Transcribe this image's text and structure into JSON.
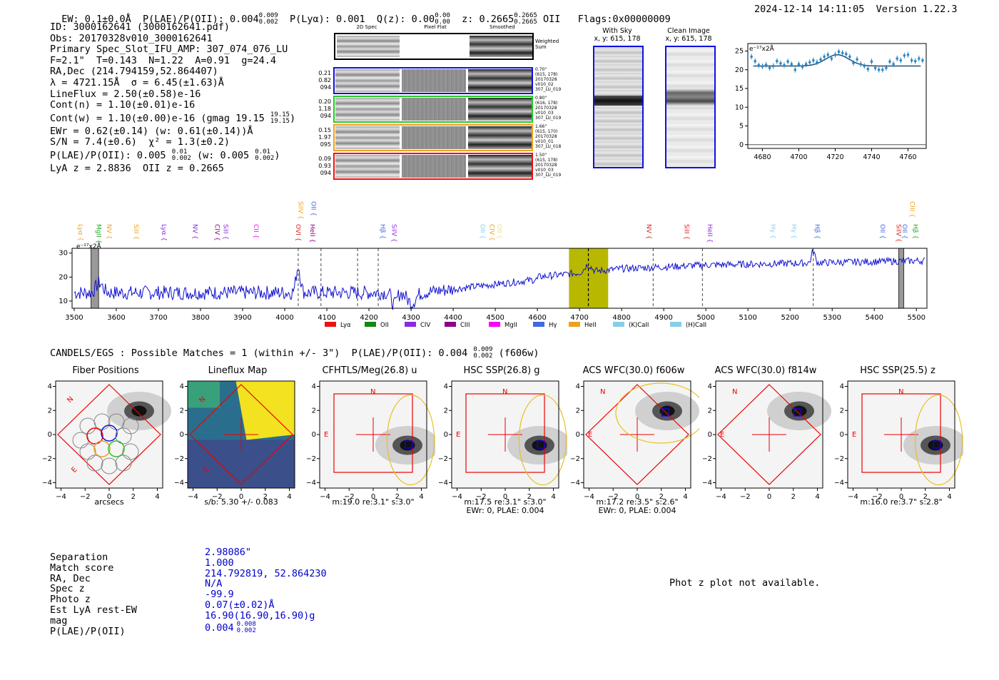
{
  "header": {
    "line": "EW: 0.1±0.0Å  P(LAE)/P(OII): 0.004",
    "plae_sup": "0.009",
    "plae_sub": "0.002",
    "plya": "P(Lyα): 0.001",
    "qz": "Q(z): 0.00",
    "qz_sup": "0.00",
    "qz_sub": "0.00",
    "z": "z: 0.2665",
    "z_sup": "0.2665",
    "z_sub": "0.2665",
    "z_line": "OII",
    "flags": "Flags:0x00000009",
    "datetime": "2024-12-14 14:11:05  Version 1.22.3"
  },
  "info": {
    "id": "ID: 3000162641 (3000162641.pdf)",
    "obs": "Obs: 20170328v010_3000162641",
    "slot": "Primary Spec_Slot_IFU_AMP: 307_074_076_LU",
    "params": "F=2.1\"  T=0.143  N=1.22  A=0.91  g=24.4",
    "radec": "RA,Dec (214.794159,52.864407)",
    "lambda": "λ = 4721.15Å  σ = 6.45(±1.63)Å",
    "lineflux": "LineFlux = 2.50(±0.58)e-16",
    "contn": "Cont(n) = 1.10(±0.01)e-16",
    "contw": "Cont(w) = 1.10(±0.00)e-16 (gmag 19.15",
    "contw_sup": "19.15",
    "contw_sub": "19.15",
    "contw_end": ")",
    "ewr": "EWr = 0.62(±0.14) (w: 0.61(±0.14))Å",
    "sn": "S/N = 7.4(±0.6)  χ² = 1.3(±0.2)",
    "plae": "P(LAE)/P(OII): 0.005",
    "plae_sup": "0.01",
    "plae_sub": "0.002",
    "plae_w": "(w: 0.005",
    "plae_w_sup": "0.01",
    "plae_w_sub": "0.002",
    "plae_w_end": ")",
    "lyaz": "LyA z = 2.8836  OII z = 0.2665"
  },
  "spec2d": {
    "col_2d": "2D Spec",
    "col_flat": "Pixel Flat",
    "col_smooth": "Smoothed",
    "weighted": "Weighted\nSum",
    "rows": [
      {
        "left": "0.21\n0.82\n094",
        "right": "0.70\"\n(615, 178)\n20170328\nv010_02\n307_LU_019",
        "color": "#1010e0"
      },
      {
        "left": "0.20\n1.18\n094",
        "right": "0.80\"\n(616, 178)\n20170328\nv010_03\n307_LU_019",
        "color": "#22cc22"
      },
      {
        "left": "0.15\n1.97\n095",
        "right": "1.66\"\n(615, 170)\n20170328\nv010_01\n307_LU_018",
        "color": "#f0a020"
      },
      {
        "left": "0.09\n0.93\n094",
        "right": "1.50\"\n(615, 178)\n20170328\nv010_03\n307_LU_019",
        "color": "#ee1111"
      }
    ]
  },
  "cutouts": {
    "sky_title": "With Sky",
    "sky_xy": "x, y: 615, 178",
    "clean_title": "Clean Image",
    "clean_xy": "x, y: 615, 178"
  },
  "zoom_chart": {
    "type": "scatter",
    "unit_label": "e⁻¹⁷x2Å",
    "x_ticks": [
      4680,
      4700,
      4720,
      4740,
      4760
    ],
    "y_ticks": [
      0,
      5,
      10,
      15,
      20,
      25
    ],
    "xlim": [
      4672,
      4770
    ],
    "ylim": [
      -1,
      27
    ],
    "x": [
      4674,
      4676,
      4678,
      4680,
      4682,
      4684,
      4686,
      4688,
      4690,
      4692,
      4694,
      4696,
      4698,
      4700,
      4702,
      4704,
      4706,
      4708,
      4710,
      4712,
      4714,
      4716,
      4718,
      4720,
      4722,
      4724,
      4726,
      4728,
      4730,
      4732,
      4734,
      4736,
      4738,
      4740,
      4742,
      4744,
      4746,
      4748,
      4750,
      4752,
      4754,
      4756,
      4758,
      4760,
      4762,
      4764,
      4766,
      4768
    ],
    "y": [
      23.5,
      22.3,
      21.2,
      20.9,
      21.3,
      20.5,
      21.0,
      22.3,
      21.7,
      21.2,
      22.2,
      21.5,
      20.0,
      21.5,
      20.8,
      21.5,
      22.0,
      22.5,
      22.0,
      22.7,
      23.5,
      24.0,
      23.0,
      24.0,
      24.8,
      24.5,
      24.2,
      23.5,
      21.8,
      22.8,
      21.5,
      21.0,
      20.2,
      22.2,
      20.5,
      20.0,
      20.0,
      20.5,
      22.2,
      21.5,
      23.0,
      22.5,
      23.8,
      24.0,
      22.5,
      22.3,
      23.0,
      22.5
    ],
    "fit_base": 21.0,
    "fit_peak": 24.0,
    "fit_center": 4721.15,
    "fit_sigma": 6.45
  },
  "full_spectrum": {
    "type": "line",
    "unit_label": "e⁻¹⁷x2Å",
    "xlim": [
      3495,
      5525
    ],
    "ylim": [
      7,
      32
    ],
    "x_ticks": [
      3500,
      3600,
      3700,
      3800,
      3900,
      4000,
      4100,
      4200,
      4300,
      4400,
      4500,
      4600,
      4700,
      4800,
      4900,
      5000,
      5100,
      5200,
      5300,
      5400,
      5500
    ],
    "y_ticks": [
      10,
      20,
      30
    ],
    "highlight_range": [
      4675,
      4768
    ],
    "masked_ranges": [
      [
        3540,
        3558
      ],
      [
        5458,
        5470
      ]
    ],
    "dashed_lines": [
      4032,
      4086,
      4173,
      4222,
      4721,
      4875,
      4992,
      5255
    ],
    "line_labels": [
      {
        "x": 3505,
        "label": "Lyα",
        "color": "#f0a020"
      },
      {
        "x": 3548,
        "label": "MgII",
        "color": "#22aa22"
      },
      {
        "x": 3573,
        "label": "NV",
        "color": "#f0a020"
      },
      {
        "x": 3637,
        "label": "SiII",
        "color": "#f0a020"
      },
      {
        "x": 3703,
        "label": "Lyα",
        "color": "#8a2be2"
      },
      {
        "x": 3777,
        "label": "NV",
        "color": "#8a2be2"
      },
      {
        "x": 3830,
        "label": "CIV",
        "color": "#8b008b"
      },
      {
        "x": 3850,
        "label": "SiII",
        "color": "#8a2be2"
      },
      {
        "x": 3922,
        "label": "CII",
        "color": "#ff00ff"
      },
      {
        "x": 4022,
        "label": "OVI",
        "color": "#dd2222"
      },
      {
        "x": 4056,
        "label": "HeII",
        "color": "#8b008b"
      },
      {
        "x": 4028,
        "label": "SiIV",
        "color": "#f0a020",
        "high": true
      },
      {
        "x": 4058,
        "label": "OII",
        "color": "#4169e1",
        "high": true
      },
      {
        "x": 4223,
        "label": "Hβ",
        "color": "#4169e1"
      },
      {
        "x": 4250,
        "label": "SiIV",
        "color": "#8a2be2"
      },
      {
        "x": 4460,
        "label": "OII",
        "color": "#87ceeb"
      },
      {
        "x": 4482,
        "label": "CIV",
        "color": "#f0a020"
      },
      {
        "x": 4500,
        "label": "OII",
        "color": "#f0e080"
      },
      {
        "x": 4855,
        "label": "NV",
        "color": "#dd2222"
      },
      {
        "x": 4945,
        "label": "SiII",
        "color": "#dd2222"
      },
      {
        "x": 5000,
        "label": "HeII",
        "color": "#8a2be2"
      },
      {
        "x": 5150,
        "label": "Hγ",
        "color": "#87ceeb"
      },
      {
        "x": 5200,
        "label": "Hγ",
        "color": "#87ceeb"
      },
      {
        "x": 5255,
        "label": "Hβ",
        "color": "#4169e1"
      },
      {
        "x": 5410,
        "label": "OII",
        "color": "#4169e1"
      },
      {
        "x": 5448,
        "label": "SiIV",
        "color": "#dd2222"
      },
      {
        "x": 5462,
        "label": "OII",
        "color": "#4169e1"
      },
      {
        "x": 5480,
        "label": "CIII",
        "color": "#f0a020",
        "high": true
      },
      {
        "x": 5488,
        "label": "Hβ",
        "color": "#22aa22"
      }
    ],
    "legend": [
      {
        "label": "Lyα",
        "color": "#ee1111"
      },
      {
        "label": "OII",
        "color": "#118811"
      },
      {
        "label": "CIV",
        "color": "#8a2be2"
      },
      {
        "label": "CIII",
        "color": "#8b008b"
      },
      {
        "label": "MgII",
        "color": "#ff00ff"
      },
      {
        "label": "Hγ",
        "color": "#4169e1"
      },
      {
        "label": "HeII",
        "color": "#f0a020"
      },
      {
        "label": "(K)CaII",
        "color": "#87ceeb"
      },
      {
        "label": "(H)CaII",
        "color": "#87ceeb"
      }
    ]
  },
  "candels": {
    "line": "CANDELS/EGS : Possible Matches = 1 (within +/- 3\")  P(LAE)/P(OII): 0.004",
    "sup": "0.009",
    "sub": "0.002",
    "end": "(f606w)"
  },
  "panels": [
    {
      "title": "Fiber Positions",
      "sub1": "arcsecs",
      "sub2": ""
    },
    {
      "title": "Lineflux Map",
      "sub1": "s/b: 5.30 +/- 0.083",
      "sub2": ""
    },
    {
      "title": "CFHTLS/Meg(26.8) u",
      "sub1": "m:19.0  re:3.1\"  s:3.0\"",
      "sub2": ""
    },
    {
      "title": "HSC SSP(26.8) g",
      "sub1": "m:17.5  re:3.1\"  s:3.0\"",
      "sub2": "EWr: 0, PLAE: 0.004"
    },
    {
      "title": "ACS WFC(30.0) f606w",
      "sub1": "m:17.2  re:3.5\"  s:2.6\"",
      "sub2": "EWr: 0, PLAE: 0.004"
    },
    {
      "title": "ACS WFC(30.0) f814w",
      "sub1": "",
      "sub2": ""
    },
    {
      "title": "HSC SSP(25.5) z",
      "sub1": "m:16.0  re:3.7\"  s:2.8\"",
      "sub2": ""
    }
  ],
  "panel_ticks": [
    "−4",
    "−2",
    "0",
    "2",
    "4"
  ],
  "panel_labels": {
    "n": "N",
    "e": "E"
  },
  "match": {
    "labels": [
      "Separation",
      "Match score",
      "RA, Dec",
      "Spec z",
      "Photo z",
      "Est LyA rest-EW",
      "mag",
      "P(LAE)/P(OII)"
    ],
    "values": [
      "2.98086\"",
      "1.000",
      "214.792819, 52.864230",
      "N/A",
      "-99.9",
      "0.07(±0.02)Å",
      "16.90(16.90,16.90)g",
      "0.004"
    ],
    "plae_sup": "0.008",
    "plae_sub": "0.002"
  },
  "photz": "Phot z plot not available."
}
